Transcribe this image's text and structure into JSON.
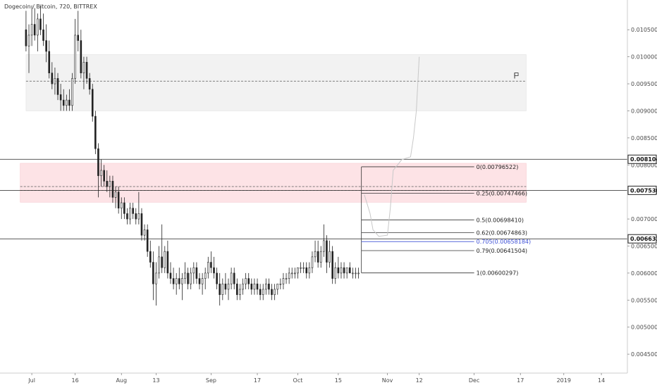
{
  "header": {
    "symbol": "Dogecoin / Bitcoin, 720, BITTREX"
  },
  "colors": {
    "candle": "#222222",
    "zone_grey": "#f2f2f2",
    "zone_red": "#fde3e6",
    "grid_line": "#222222",
    "fib_blue": "#3f51d6",
    "axis_border": "#cccccc",
    "hand_drawn": "#c8c8c8"
  },
  "chart_data": {
    "type": "candlestick",
    "title": "Dogecoin / Bitcoin, 720, BITTREX",
    "ylim": [
      0.00415,
      0.01105
    ],
    "y_ticks": [
      {
        "value": 0.0105,
        "label": "0.01050000"
      },
      {
        "value": 0.01,
        "label": "0.01000000"
      },
      {
        "value": 0.0095,
        "label": "0.00950000"
      },
      {
        "value": 0.009,
        "label": "0.00900000"
      },
      {
        "value": 0.0085,
        "label": "0.00850000"
      },
      {
        "value": 0.008,
        "label": "0.00800000"
      },
      {
        "value": 0.0075,
        "label": "0.00750000"
      },
      {
        "value": 0.007,
        "label": "0.00700000"
      },
      {
        "value": 0.0065,
        "label": "0.00650000"
      },
      {
        "value": 0.006,
        "label": "0.00600000"
      },
      {
        "value": 0.0055,
        "label": "0.00550000"
      },
      {
        "value": 0.005,
        "label": "0.00500000"
      },
      {
        "value": 0.0045,
        "label": "0.00450000"
      }
    ],
    "x_ticks": [
      {
        "date": "2018-07-01",
        "label": "Jul"
      },
      {
        "date": "2018-07-16",
        "label": "16"
      },
      {
        "date": "2018-08-01",
        "label": "Aug"
      },
      {
        "date": "2018-08-13",
        "label": "13"
      },
      {
        "date": "2018-09-01",
        "label": "Sep"
      },
      {
        "date": "2018-09-17",
        "label": "17"
      },
      {
        "date": "2018-10-01",
        "label": "Oct"
      },
      {
        "date": "2018-10-15",
        "label": "15"
      },
      {
        "date": "2018-11-01",
        "label": "Nov"
      },
      {
        "date": "2018-11-12",
        "label": "12"
      },
      {
        "date": "2018-12-01",
        "label": "Dec"
      },
      {
        "date": "2018-12-17",
        "label": "17"
      },
      {
        "date": "2019-01-01",
        "label": "2019"
      },
      {
        "date": "2019-01-14",
        "label": "14"
      }
    ],
    "price_badges": [
      {
        "value": 0.00810453,
        "label": "0.00810453"
      },
      {
        "value": 0.00753,
        "label": "0.00753000"
      },
      {
        "value": 0.0066338,
        "label": "0.00663380"
      }
    ],
    "zones": [
      {
        "name": "grey-supply-zone",
        "from_date": "2018-06-29",
        "to_date": "2018-12-19",
        "top": 0.01004,
        "bottom": 0.009,
        "mid": 0.00955
      },
      {
        "name": "red-resistance-zone",
        "from_date": "2018-06-27",
        "to_date": "2018-12-19",
        "top": 0.00803,
        "bottom": 0.00731,
        "mid": 0.0076
      }
    ],
    "fibonacci": {
      "start_date": "2018-10-23",
      "end_date": "2018-12-19",
      "levels": [
        {
          "ratio": "0",
          "value": 0.00796522,
          "label": "0(0.00796522)"
        },
        {
          "ratio": "0.25",
          "value": 0.00747466,
          "label": "0.25(0.00747466)"
        },
        {
          "ratio": "0.5",
          "value": 0.0069841,
          "label": "0.5(0.00698410)"
        },
        {
          "ratio": "0.62",
          "value": 0.00674863,
          "label": "0.62(0.00674863)"
        },
        {
          "ratio": "0.705",
          "value": 0.00658184,
          "label": "0.705(0.00658184)",
          "highlight": true
        },
        {
          "ratio": "0.79",
          "value": 0.00641504,
          "label": "0.79(0.00641504)"
        },
        {
          "ratio": "1",
          "value": 0.00600297,
          "label": "1(0.00600297)"
        }
      ]
    },
    "candles": [
      {
        "d": "2018-06-29",
        "o": 0.0105,
        "h": 0.01085,
        "l": 0.0101,
        "c": 0.0102
      },
      {
        "d": "2018-06-30",
        "o": 0.0102,
        "h": 0.0106,
        "l": 0.0097,
        "c": 0.0104
      },
      {
        "d": "2018-07-01",
        "o": 0.0104,
        "h": 0.01095,
        "l": 0.0102,
        "c": 0.0106
      },
      {
        "d": "2018-07-02",
        "o": 0.0106,
        "h": 0.0109,
        "l": 0.0103,
        "c": 0.0104
      },
      {
        "d": "2018-07-03",
        "o": 0.0104,
        "h": 0.0108,
        "l": 0.0101,
        "c": 0.0107
      },
      {
        "d": "2018-07-04",
        "o": 0.0107,
        "h": 0.01095,
        "l": 0.0104,
        "c": 0.0105
      },
      {
        "d": "2018-07-05",
        "o": 0.0105,
        "h": 0.0108,
        "l": 0.0102,
        "c": 0.0103
      },
      {
        "d": "2018-07-06",
        "o": 0.0103,
        "h": 0.0106,
        "l": 0.0099,
        "c": 0.0101
      },
      {
        "d": "2018-07-07",
        "o": 0.0101,
        "h": 0.0103,
        "l": 0.0096,
        "c": 0.0097
      },
      {
        "d": "2018-07-08",
        "o": 0.0097,
        "h": 0.0099,
        "l": 0.0094,
        "c": 0.0095
      },
      {
        "d": "2018-07-09",
        "o": 0.0095,
        "h": 0.0098,
        "l": 0.0093,
        "c": 0.0096
      },
      {
        "d": "2018-07-10",
        "o": 0.0096,
        "h": 0.0097,
        "l": 0.0092,
        "c": 0.0093
      },
      {
        "d": "2018-07-11",
        "o": 0.0093,
        "h": 0.0095,
        "l": 0.009,
        "c": 0.0092
      },
      {
        "d": "2018-07-12",
        "o": 0.0092,
        "h": 0.0094,
        "l": 0.009,
        "c": 0.0091
      },
      {
        "d": "2018-07-13",
        "o": 0.0091,
        "h": 0.0093,
        "l": 0.009,
        "c": 0.0092
      },
      {
        "d": "2018-07-14",
        "o": 0.0092,
        "h": 0.0094,
        "l": 0.009,
        "c": 0.0091
      },
      {
        "d": "2018-07-15",
        "o": 0.0091,
        "h": 0.0097,
        "l": 0.009,
        "c": 0.0096
      },
      {
        "d": "2018-07-16",
        "o": 0.0096,
        "h": 0.0107,
        "l": 0.0095,
        "c": 0.0104
      },
      {
        "d": "2018-07-17",
        "o": 0.0104,
        "h": 0.01085,
        "l": 0.0101,
        "c": 0.0103
      },
      {
        "d": "2018-07-18",
        "o": 0.0103,
        "h": 0.0105,
        "l": 0.0096,
        "c": 0.0097
      },
      {
        "d": "2018-07-19",
        "o": 0.0097,
        "h": 0.01,
        "l": 0.0094,
        "c": 0.0099
      },
      {
        "d": "2018-07-20",
        "o": 0.0099,
        "h": 0.01,
        "l": 0.0095,
        "c": 0.0096
      },
      {
        "d": "2018-07-21",
        "o": 0.0096,
        "h": 0.0097,
        "l": 0.0093,
        "c": 0.0094
      },
      {
        "d": "2018-07-22",
        "o": 0.0094,
        "h": 0.0095,
        "l": 0.0088,
        "c": 0.0089
      },
      {
        "d": "2018-07-23",
        "o": 0.0089,
        "h": 0.009,
        "l": 0.0082,
        "c": 0.0083
      },
      {
        "d": "2018-07-24",
        "o": 0.0083,
        "h": 0.0084,
        "l": 0.0074,
        "c": 0.0078
      },
      {
        "d": "2018-07-25",
        "o": 0.0078,
        "h": 0.0081,
        "l": 0.0076,
        "c": 0.0079
      },
      {
        "d": "2018-07-26",
        "o": 0.0079,
        "h": 0.008,
        "l": 0.0076,
        "c": 0.0077
      },
      {
        "d": "2018-07-27",
        "o": 0.0077,
        "h": 0.0079,
        "l": 0.0075,
        "c": 0.0076
      },
      {
        "d": "2018-07-28",
        "o": 0.0076,
        "h": 0.0078,
        "l": 0.0074,
        "c": 0.0077
      },
      {
        "d": "2018-07-29",
        "o": 0.0077,
        "h": 0.0078,
        "l": 0.0073,
        "c": 0.0074
      },
      {
        "d": "2018-07-30",
        "o": 0.0074,
        "h": 0.0076,
        "l": 0.0072,
        "c": 0.0075
      },
      {
        "d": "2018-07-31",
        "o": 0.0075,
        "h": 0.0076,
        "l": 0.0071,
        "c": 0.0072
      },
      {
        "d": "2018-08-01",
        "o": 0.0072,
        "h": 0.0074,
        "l": 0.007,
        "c": 0.0073
      },
      {
        "d": "2018-08-02",
        "o": 0.0073,
        "h": 0.0074,
        "l": 0.007,
        "c": 0.0071
      },
      {
        "d": "2018-08-03",
        "o": 0.0071,
        "h": 0.0072,
        "l": 0.0069,
        "c": 0.007
      },
      {
        "d": "2018-08-04",
        "o": 0.007,
        "h": 0.0073,
        "l": 0.0069,
        "c": 0.0072
      },
      {
        "d": "2018-08-05",
        "o": 0.0072,
        "h": 0.0073,
        "l": 0.007,
        "c": 0.0071
      },
      {
        "d": "2018-08-06",
        "o": 0.0071,
        "h": 0.0072,
        "l": 0.0069,
        "c": 0.007
      },
      {
        "d": "2018-08-07",
        "o": 0.007,
        "h": 0.0075,
        "l": 0.0069,
        "c": 0.0071
      },
      {
        "d": "2018-08-08",
        "o": 0.0071,
        "h": 0.0072,
        "l": 0.0066,
        "c": 0.0067
      },
      {
        "d": "2018-08-09",
        "o": 0.0067,
        "h": 0.0069,
        "l": 0.0066,
        "c": 0.0068
      },
      {
        "d": "2018-08-10",
        "o": 0.0068,
        "h": 0.0069,
        "l": 0.0063,
        "c": 0.0064
      },
      {
        "d": "2018-08-11",
        "o": 0.0064,
        "h": 0.0066,
        "l": 0.0061,
        "c": 0.0062
      },
      {
        "d": "2018-08-12",
        "o": 0.0062,
        "h": 0.0064,
        "l": 0.0055,
        "c": 0.0058
      },
      {
        "d": "2018-08-13",
        "o": 0.0058,
        "h": 0.0062,
        "l": 0.0054,
        "c": 0.006
      },
      {
        "d": "2018-08-14",
        "o": 0.006,
        "h": 0.0065,
        "l": 0.0059,
        "c": 0.0063
      },
      {
        "d": "2018-08-15",
        "o": 0.0063,
        "h": 0.0069,
        "l": 0.006,
        "c": 0.0061
      },
      {
        "d": "2018-08-16",
        "o": 0.0061,
        "h": 0.0065,
        "l": 0.006,
        "c": 0.0064
      },
      {
        "d": "2018-08-17",
        "o": 0.0064,
        "h": 0.0066,
        "l": 0.0059,
        "c": 0.006
      },
      {
        "d": "2018-08-18",
        "o": 0.006,
        "h": 0.0062,
        "l": 0.0058,
        "c": 0.0059
      },
      {
        "d": "2018-08-19",
        "o": 0.0059,
        "h": 0.0061,
        "l": 0.0057,
        "c": 0.0058
      },
      {
        "d": "2018-08-20",
        "o": 0.0058,
        "h": 0.006,
        "l": 0.0056,
        "c": 0.0059
      },
      {
        "d": "2018-08-21",
        "o": 0.0059,
        "h": 0.0061,
        "l": 0.0057,
        "c": 0.0058
      },
      {
        "d": "2018-08-22",
        "o": 0.0058,
        "h": 0.006,
        "l": 0.0055,
        "c": 0.0059
      },
      {
        "d": "2018-08-23",
        "o": 0.0059,
        "h": 0.0062,
        "l": 0.0058,
        "c": 0.006
      },
      {
        "d": "2018-08-24",
        "o": 0.006,
        "h": 0.0061,
        "l": 0.0057,
        "c": 0.0058
      },
      {
        "d": "2018-08-25",
        "o": 0.0058,
        "h": 0.0061,
        "l": 0.0057,
        "c": 0.006
      },
      {
        "d": "2018-08-26",
        "o": 0.006,
        "h": 0.0062,
        "l": 0.0058,
        "c": 0.0061
      },
      {
        "d": "2018-08-27",
        "o": 0.0061,
        "h": 0.0062,
        "l": 0.0058,
        "c": 0.0059
      },
      {
        "d": "2018-08-28",
        "o": 0.0059,
        "h": 0.006,
        "l": 0.0057,
        "c": 0.0058
      },
      {
        "d": "2018-08-29",
        "o": 0.0058,
        "h": 0.006,
        "l": 0.0056,
        "c": 0.0059
      },
      {
        "d": "2018-08-30",
        "o": 0.0059,
        "h": 0.0061,
        "l": 0.0057,
        "c": 0.006
      },
      {
        "d": "2018-08-31",
        "o": 0.006,
        "h": 0.0063,
        "l": 0.0059,
        "c": 0.0062
      },
      {
        "d": "2018-09-01",
        "o": 0.0062,
        "h": 0.0064,
        "l": 0.006,
        "c": 0.0061
      },
      {
        "d": "2018-09-02",
        "o": 0.0061,
        "h": 0.0063,
        "l": 0.0059,
        "c": 0.006
      },
      {
        "d": "2018-09-03",
        "o": 0.006,
        "h": 0.0061,
        "l": 0.0057,
        "c": 0.0058
      },
      {
        "d": "2018-09-04",
        "o": 0.0058,
        "h": 0.006,
        "l": 0.0054,
        "c": 0.0056
      },
      {
        "d": "2018-09-05",
        "o": 0.0056,
        "h": 0.0059,
        "l": 0.0055,
        "c": 0.0058
      },
      {
        "d": "2018-09-06",
        "o": 0.0058,
        "h": 0.006,
        "l": 0.0056,
        "c": 0.0057
      },
      {
        "d": "2018-09-07",
        "o": 0.0057,
        "h": 0.0059,
        "l": 0.0055,
        "c": 0.0058
      },
      {
        "d": "2018-09-08",
        "o": 0.0058,
        "h": 0.0061,
        "l": 0.0057,
        "c": 0.006
      },
      {
        "d": "2018-09-09",
        "o": 0.006,
        "h": 0.0061,
        "l": 0.0057,
        "c": 0.0058
      },
      {
        "d": "2018-09-10",
        "o": 0.0058,
        "h": 0.0059,
        "l": 0.0055,
        "c": 0.0056
      },
      {
        "d": "2018-09-11",
        "o": 0.0056,
        "h": 0.0058,
        "l": 0.0055,
        "c": 0.0057
      },
      {
        "d": "2018-09-12",
        "o": 0.0057,
        "h": 0.0059,
        "l": 0.0056,
        "c": 0.0058
      },
      {
        "d": "2018-09-13",
        "o": 0.0058,
        "h": 0.006,
        "l": 0.0057,
        "c": 0.0059
      },
      {
        "d": "2018-09-14",
        "o": 0.0059,
        "h": 0.006,
        "l": 0.0057,
        "c": 0.0058
      },
      {
        "d": "2018-09-15",
        "o": 0.0058,
        "h": 0.0059,
        "l": 0.0056,
        "c": 0.0057
      },
      {
        "d": "2018-09-16",
        "o": 0.0057,
        "h": 0.0059,
        "l": 0.0056,
        "c": 0.0058
      },
      {
        "d": "2018-09-17",
        "o": 0.0058,
        "h": 0.0059,
        "l": 0.0056,
        "c": 0.0057
      },
      {
        "d": "2018-09-18",
        "o": 0.0057,
        "h": 0.0058,
        "l": 0.0055,
        "c": 0.0056
      },
      {
        "d": "2018-09-19",
        "o": 0.0056,
        "h": 0.0058,
        "l": 0.0055,
        "c": 0.0057
      },
      {
        "d": "2018-09-20",
        "o": 0.0057,
        "h": 0.0059,
        "l": 0.0056,
        "c": 0.0058
      },
      {
        "d": "2018-09-21",
        "o": 0.0058,
        "h": 0.0059,
        "l": 0.0056,
        "c": 0.0057
      },
      {
        "d": "2018-09-22",
        "o": 0.0057,
        "h": 0.0058,
        "l": 0.0055,
        "c": 0.0056
      },
      {
        "d": "2018-09-23",
        "o": 0.0056,
        "h": 0.0058,
        "l": 0.0055,
        "c": 0.0057
      },
      {
        "d": "2018-09-24",
        "o": 0.0057,
        "h": 0.0058,
        "l": 0.0056,
        "c": 0.0058
      },
      {
        "d": "2018-09-25",
        "o": 0.0058,
        "h": 0.0059,
        "l": 0.0057,
        "c": 0.0058
      },
      {
        "d": "2018-09-26",
        "o": 0.0058,
        "h": 0.006,
        "l": 0.0057,
        "c": 0.0059
      },
      {
        "d": "2018-09-27",
        "o": 0.0059,
        "h": 0.006,
        "l": 0.0058,
        "c": 0.0059
      },
      {
        "d": "2018-09-28",
        "o": 0.0059,
        "h": 0.0061,
        "l": 0.0058,
        "c": 0.006
      },
      {
        "d": "2018-09-29",
        "o": 0.006,
        "h": 0.0061,
        "l": 0.0059,
        "c": 0.006
      },
      {
        "d": "2018-09-30",
        "o": 0.006,
        "h": 0.0061,
        "l": 0.0059,
        "c": 0.006
      },
      {
        "d": "2018-10-01",
        "o": 0.006,
        "h": 0.0061,
        "l": 0.0059,
        "c": 0.0061
      },
      {
        "d": "2018-10-02",
        "o": 0.0061,
        "h": 0.0062,
        "l": 0.006,
        "c": 0.0061
      },
      {
        "d": "2018-10-03",
        "o": 0.0061,
        "h": 0.0062,
        "l": 0.006,
        "c": 0.0061
      },
      {
        "d": "2018-10-04",
        "o": 0.0061,
        "h": 0.0062,
        "l": 0.0059,
        "c": 0.006
      },
      {
        "d": "2018-10-05",
        "o": 0.006,
        "h": 0.0062,
        "l": 0.0059,
        "c": 0.0061
      },
      {
        "d": "2018-10-06",
        "o": 0.0061,
        "h": 0.0064,
        "l": 0.006,
        "c": 0.0063
      },
      {
        "d": "2018-10-07",
        "o": 0.0063,
        "h": 0.0066,
        "l": 0.0062,
        "c": 0.0064
      },
      {
        "d": "2018-10-08",
        "o": 0.0064,
        "h": 0.0066,
        "l": 0.0061,
        "c": 0.0062
      },
      {
        "d": "2018-10-09",
        "o": 0.0062,
        "h": 0.0065,
        "l": 0.0061,
        "c": 0.0064
      },
      {
        "d": "2018-10-10",
        "o": 0.0064,
        "h": 0.0069,
        "l": 0.0063,
        "c": 0.0066
      },
      {
        "d": "2018-10-11",
        "o": 0.0066,
        "h": 0.0067,
        "l": 0.006,
        "c": 0.0062
      },
      {
        "d": "2018-10-12",
        "o": 0.0062,
        "h": 0.0066,
        "l": 0.0061,
        "c": 0.0064
      },
      {
        "d": "2018-10-13",
        "o": 0.0064,
        "h": 0.0065,
        "l": 0.0058,
        "c": 0.0059
      },
      {
        "d": "2018-10-14",
        "o": 0.0059,
        "h": 0.0062,
        "l": 0.0058,
        "c": 0.0061
      },
      {
        "d": "2018-10-15",
        "o": 0.0061,
        "h": 0.0063,
        "l": 0.0059,
        "c": 0.006
      },
      {
        "d": "2018-10-16",
        "o": 0.006,
        "h": 0.0062,
        "l": 0.0059,
        "c": 0.0061
      },
      {
        "d": "2018-10-17",
        "o": 0.0061,
        "h": 0.0062,
        "l": 0.0059,
        "c": 0.006
      },
      {
        "d": "2018-10-18",
        "o": 0.006,
        "h": 0.0061,
        "l": 0.0059,
        "c": 0.0061
      },
      {
        "d": "2018-10-19",
        "o": 0.0061,
        "h": 0.0062,
        "l": 0.006,
        "c": 0.006
      },
      {
        "d": "2018-10-20",
        "o": 0.006,
        "h": 0.0061,
        "l": 0.0059,
        "c": 0.006
      },
      {
        "d": "2018-10-21",
        "o": 0.006,
        "h": 0.0061,
        "l": 0.0059,
        "c": 0.006
      },
      {
        "d": "2018-10-22",
        "o": 0.006,
        "h": 0.0061,
        "l": 0.0059,
        "c": 0.006
      }
    ]
  }
}
